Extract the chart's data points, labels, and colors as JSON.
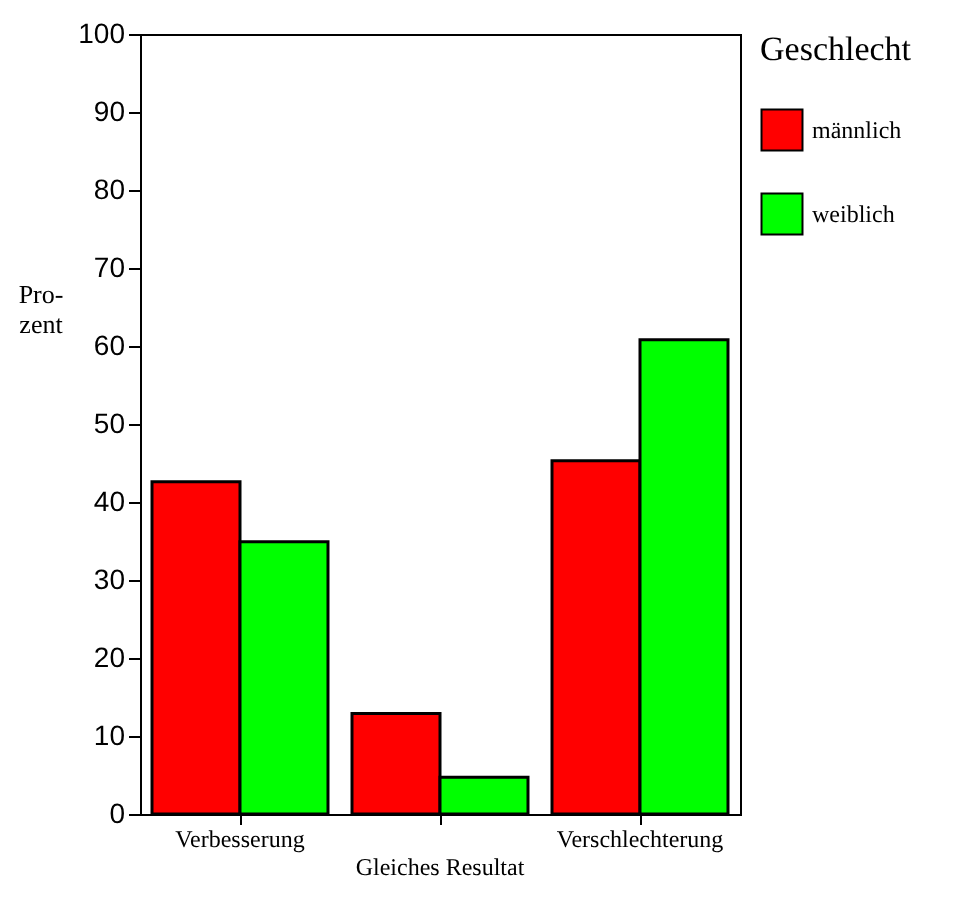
{
  "chart_data": {
    "type": "bar",
    "ylabel": "Pro-\nzent",
    "legend_title": "Geschlecht",
    "categories": [
      "Verbesserung",
      "Gleiches Resultat",
      "Verschlechterung"
    ],
    "series": [
      {
        "name": "männlich",
        "color": "#ff0000",
        "values": [
          42.6,
          12.9,
          45.3
        ]
      },
      {
        "name": "weiblich",
        "color": "#00ff00",
        "values": [
          34.9,
          4.7,
          60.8
        ]
      }
    ],
    "ylim": [
      0,
      100
    ],
    "yticks": [
      0,
      10,
      20,
      30,
      40,
      50,
      60,
      70,
      80,
      90,
      100
    ],
    "legend": "right"
  }
}
